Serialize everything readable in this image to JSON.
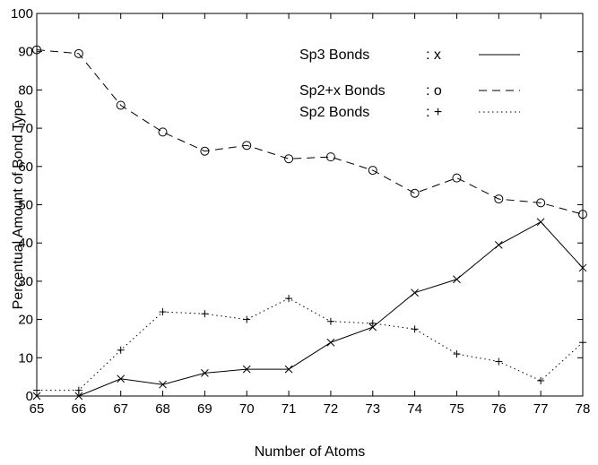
{
  "chart_data": {
    "type": "line",
    "title": "",
    "xlabel": "Number of Atoms",
    "ylabel": "Percentual Amount of Bond Type",
    "xlim": [
      65,
      78
    ],
    "ylim": [
      0,
      100
    ],
    "x": [
      65,
      66,
      67,
      68,
      69,
      70,
      71,
      72,
      73,
      74,
      75,
      76,
      77,
      78
    ],
    "x_ticks": [
      "65",
      "66",
      "67",
      "68",
      "69",
      "70",
      "71",
      "72",
      "73",
      "74",
      "75",
      "76",
      "77",
      "78"
    ],
    "y_ticks": [
      "0",
      "10",
      "20",
      "30",
      "40",
      "50",
      "60",
      "70",
      "80",
      "90",
      "100"
    ],
    "grid": false,
    "legend_position": "top-right",
    "series": [
      {
        "name": "Sp3 Bonds",
        "legend_label": "Sp3 Bonds",
        "legend_marker": ": x",
        "marker": "x",
        "line_style": "solid",
        "color": "#000000",
        "values": [
          0,
          0,
          4.5,
          3,
          6,
          7,
          7,
          14,
          18,
          27,
          30.5,
          39.5,
          45.5,
          33.5
        ]
      },
      {
        "name": "Sp2+x Bonds",
        "legend_label": "Sp2+x Bonds",
        "legend_marker": ": o",
        "marker": "o",
        "line_style": "dashed",
        "color": "#000000",
        "values": [
          90.5,
          89.5,
          76,
          69,
          64,
          65.5,
          62,
          62.5,
          59,
          53,
          57,
          51.5,
          50.5,
          47.5
        ]
      },
      {
        "name": "Sp2 Bonds",
        "legend_label": "Sp2 Bonds",
        "legend_marker": ": +",
        "marker": "+",
        "line_style": "dotted",
        "color": "#000000",
        "values": [
          1.5,
          1.5,
          12,
          22,
          21.5,
          20,
          25.5,
          19.5,
          19,
          17.5,
          11,
          9,
          4,
          14
        ]
      }
    ]
  }
}
